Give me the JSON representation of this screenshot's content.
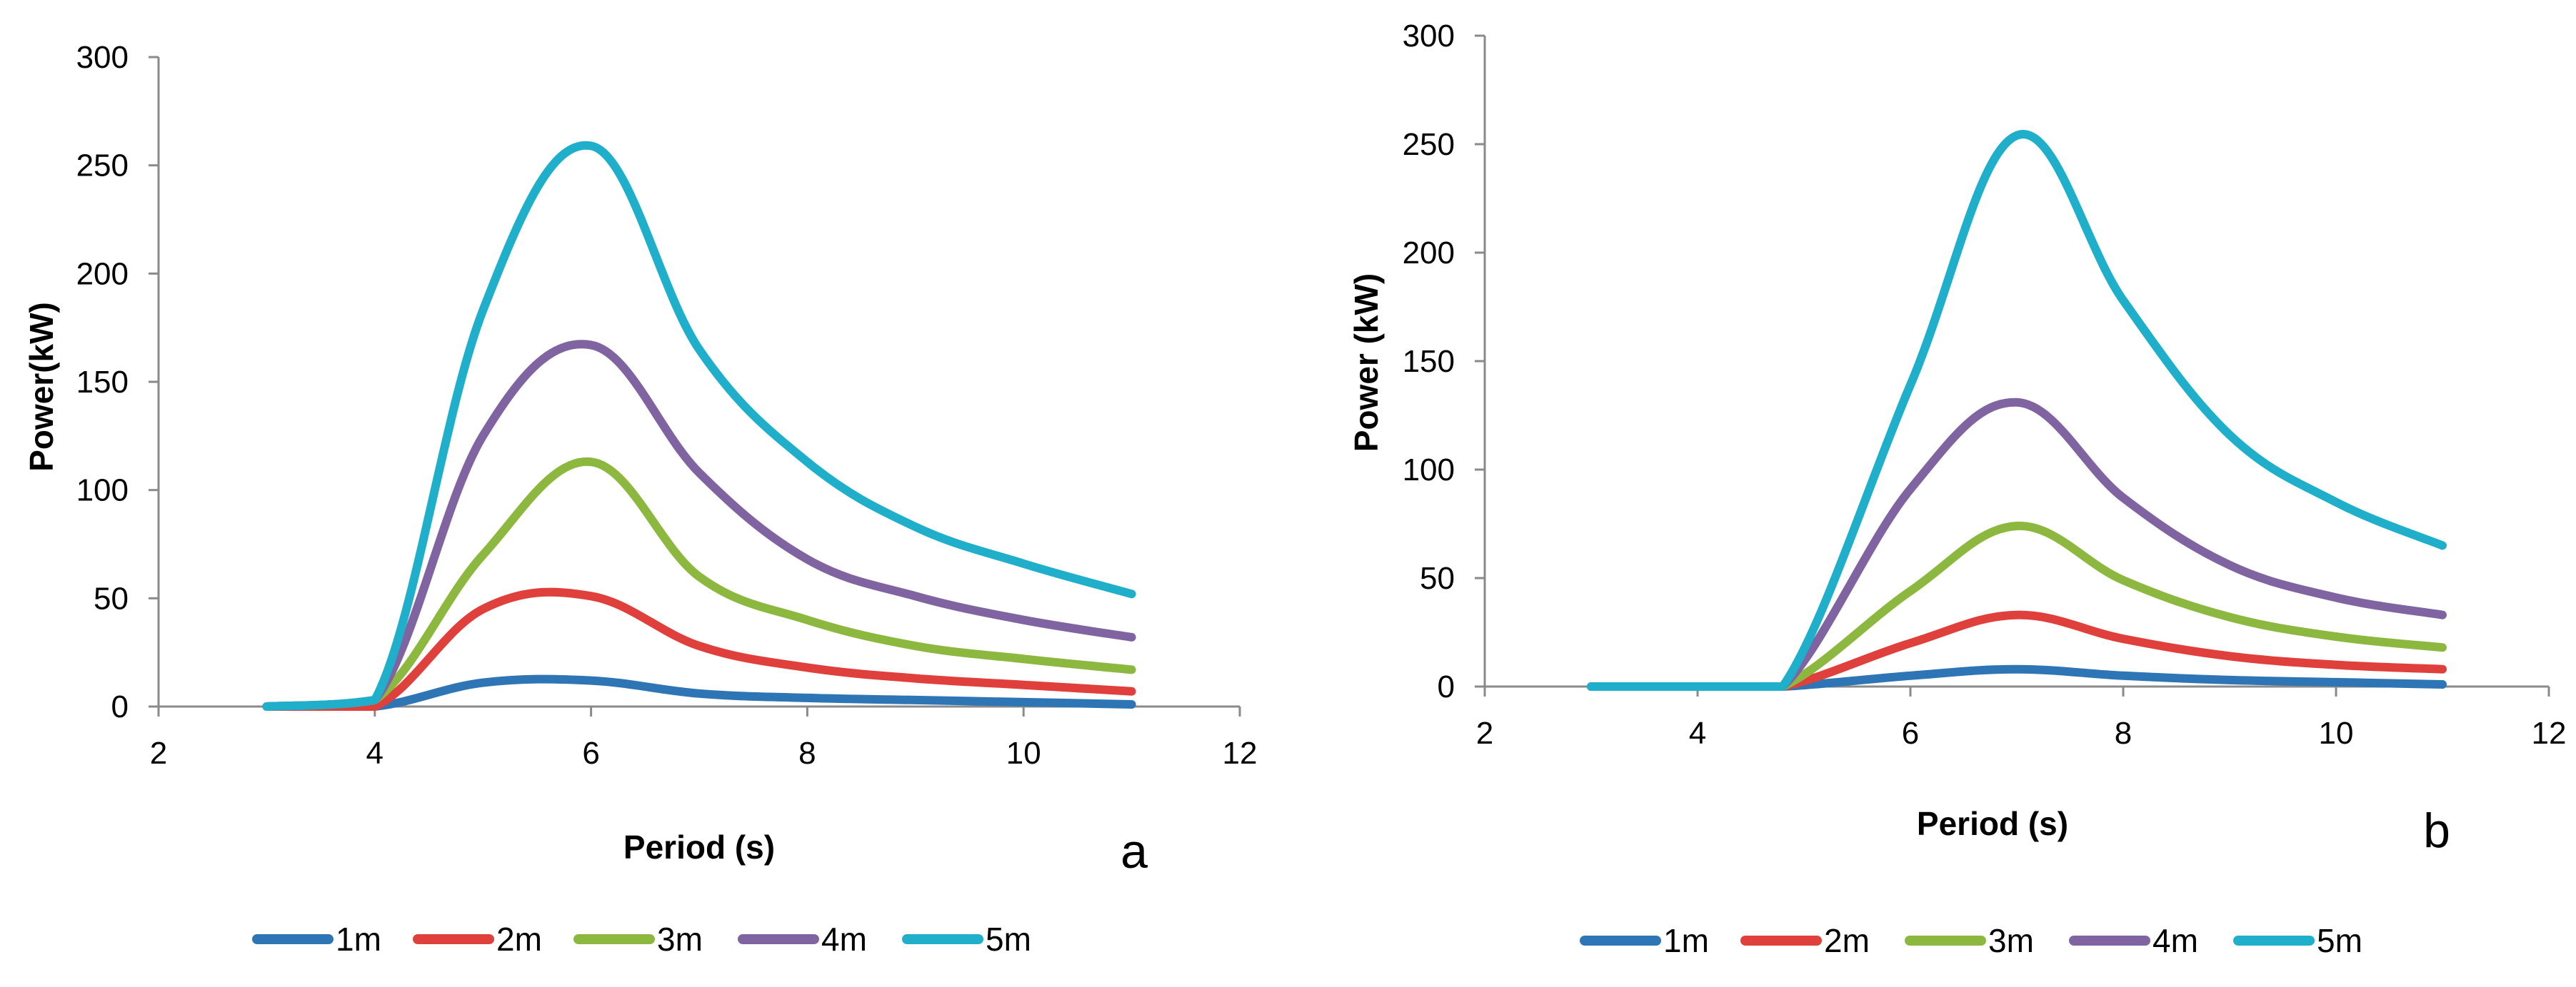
{
  "chart_data": [
    {
      "type": "line",
      "panel_label": "a",
      "xlabel": "Period (s)",
      "ylabel": "Power(kW)",
      "xlim": [
        2,
        12
      ],
      "ylim": [
        0,
        300
      ],
      "xticks": [
        "2",
        "4",
        "6",
        "8",
        "10",
        "12"
      ],
      "yticks": [
        "0",
        "50",
        "100",
        "150",
        "200",
        "250",
        "300"
      ],
      "x": [
        3,
        4,
        5,
        6,
        7,
        8,
        9,
        10,
        11
      ],
      "series": [
        {
          "name": "1m",
          "color": "#2E75B6",
          "values": [
            0,
            0,
            11,
            12,
            6,
            4,
            3,
            2,
            1
          ]
        },
        {
          "name": "2m",
          "color": "#E0403C",
          "values": [
            0,
            0,
            45,
            51,
            28,
            18,
            13,
            10,
            7
          ]
        },
        {
          "name": "3m",
          "color": "#8DB83F",
          "values": [
            0,
            3,
            70,
            113,
            60,
            40,
            28,
            22,
            17
          ]
        },
        {
          "name": "4m",
          "color": "#8064A2",
          "values": [
            0,
            3,
            125,
            167,
            108,
            68,
            51,
            40,
            32
          ]
        },
        {
          "name": "5m",
          "color": "#1FAFCB",
          "values": [
            0,
            3,
            183,
            259,
            165,
            113,
            83,
            66,
            52
          ]
        }
      ],
      "legend": [
        "1m",
        "2m",
        "3m",
        "4m",
        "5m"
      ],
      "legend_position": "bottom"
    },
    {
      "type": "line",
      "panel_label": "b",
      "xlabel": "Period (s)",
      "ylabel": "Power (kW)",
      "xlim": [
        2,
        12
      ],
      "ylim": [
        0,
        300
      ],
      "xticks": [
        "2",
        "4",
        "6",
        "8",
        "10",
        "12"
      ],
      "yticks": [
        "0",
        "50",
        "100",
        "150",
        "200",
        "250",
        "300"
      ],
      "x": [
        3,
        4,
        4.8,
        6,
        7,
        8,
        9,
        10,
        11
      ],
      "series": [
        {
          "name": "1m",
          "color": "#2E75B6",
          "values": [
            0,
            0,
            0,
            5,
            8,
            5,
            3,
            2,
            1
          ]
        },
        {
          "name": "2m",
          "color": "#E0403C",
          "values": [
            0,
            0,
            0,
            20,
            33,
            22,
            14,
            10,
            8
          ]
        },
        {
          "name": "3m",
          "color": "#8DB83F",
          "values": [
            0,
            0,
            0,
            44,
            74,
            49,
            32,
            23,
            18
          ]
        },
        {
          "name": "4m",
          "color": "#8064A2",
          "values": [
            0,
            0,
            0,
            91,
            131,
            87,
            56,
            41,
            33
          ]
        },
        {
          "name": "5m",
          "color": "#1FAFCB",
          "values": [
            0,
            0,
            0,
            139,
            254,
            178,
            116,
            85,
            65
          ]
        }
      ],
      "legend": [
        "1m",
        "2m",
        "3m",
        "4m",
        "5m"
      ],
      "legend_position": "bottom"
    }
  ]
}
